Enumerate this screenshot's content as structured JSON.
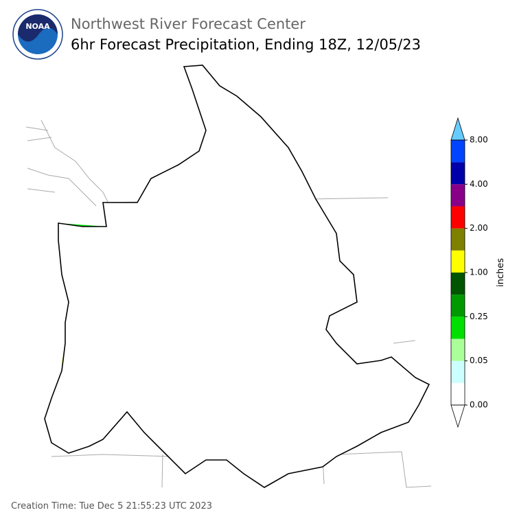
{
  "header": {
    "logo_text": "NOAA",
    "title": "Northwest River Forecast Center",
    "subtitle": "6hr Forecast Precipitation, Ending 18Z, 12/05/23"
  },
  "colorbar": {
    "label": "inches",
    "colors": [
      "#ffffff",
      "#ccffff",
      "#aaff99",
      "#00e000",
      "#009900",
      "#005500",
      "#ffff00",
      "#808000",
      "#ff0000",
      "#880088",
      "#0000aa",
      "#0044ff"
    ],
    "over_color": "#66ccff",
    "under_color": "#ffffff",
    "ticks": [
      {
        "value": 0,
        "label": "0.00"
      },
      {
        "value": 0.05,
        "label": "0.05"
      },
      {
        "value": 0.25,
        "label": "0.25"
      },
      {
        "value": 1,
        "label": "1.00"
      },
      {
        "value": 2,
        "label": "2.00"
      },
      {
        "value": 4,
        "label": "4.00"
      },
      {
        "value": 8,
        "label": "8.00"
      }
    ]
  },
  "footer": {
    "creation_time": "Creation Time: Tue Dec 5 21:55:23 UTC 2023"
  }
}
